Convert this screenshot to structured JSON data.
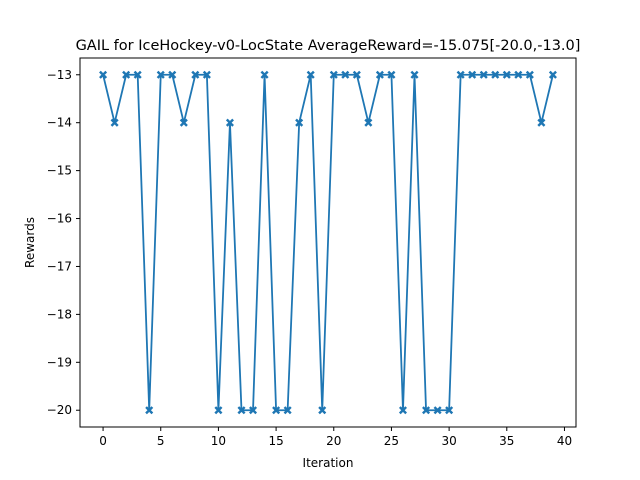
{
  "chart_data": {
    "type": "line",
    "title": "GAIL for IceHockey-v0-LocState AverageReward=-15.075[-20.0,-13.0]",
    "xlabel": "Iteration",
    "ylabel": "Rewards",
    "xlim": [
      -2,
      41
    ],
    "ylim": [
      -20.35,
      -12.65
    ],
    "xticks": [
      0,
      5,
      10,
      15,
      20,
      25,
      30,
      35,
      40
    ],
    "yticks": [
      -13,
      -14,
      -15,
      -16,
      -17,
      -18,
      -19,
      -20
    ],
    "xtick_labels": [
      "0",
      "5",
      "10",
      "15",
      "20",
      "25",
      "30",
      "35",
      "40"
    ],
    "ytick_labels": [
      "−13",
      "−14",
      "−15",
      "−16",
      "−17",
      "−18",
      "−19",
      "−20"
    ],
    "grid": false,
    "marker": "X",
    "line_color": "#1f77b4",
    "series": [
      {
        "x": [
          0,
          1,
          2,
          3,
          4,
          5,
          6,
          7,
          8,
          9,
          10,
          11,
          12,
          13,
          14,
          15,
          16,
          17,
          18,
          19,
          20,
          21,
          22,
          23,
          24,
          25,
          26,
          27,
          28,
          29,
          30,
          31,
          32,
          33,
          34,
          35,
          36,
          37,
          38,
          39
        ],
        "y": [
          -13,
          -14,
          -13,
          -13,
          -20,
          -13,
          -13,
          -14,
          -13,
          -13,
          -20,
          -14,
          -20,
          -20,
          -13,
          -20,
          -20,
          -14,
          -13,
          -20,
          -13,
          -13,
          -13,
          -14,
          -13,
          -13,
          -20,
          -13,
          -20,
          -20,
          -20,
          -13,
          -13,
          -13,
          -13,
          -13,
          -13,
          -13,
          -14,
          -13
        ]
      }
    ]
  }
}
